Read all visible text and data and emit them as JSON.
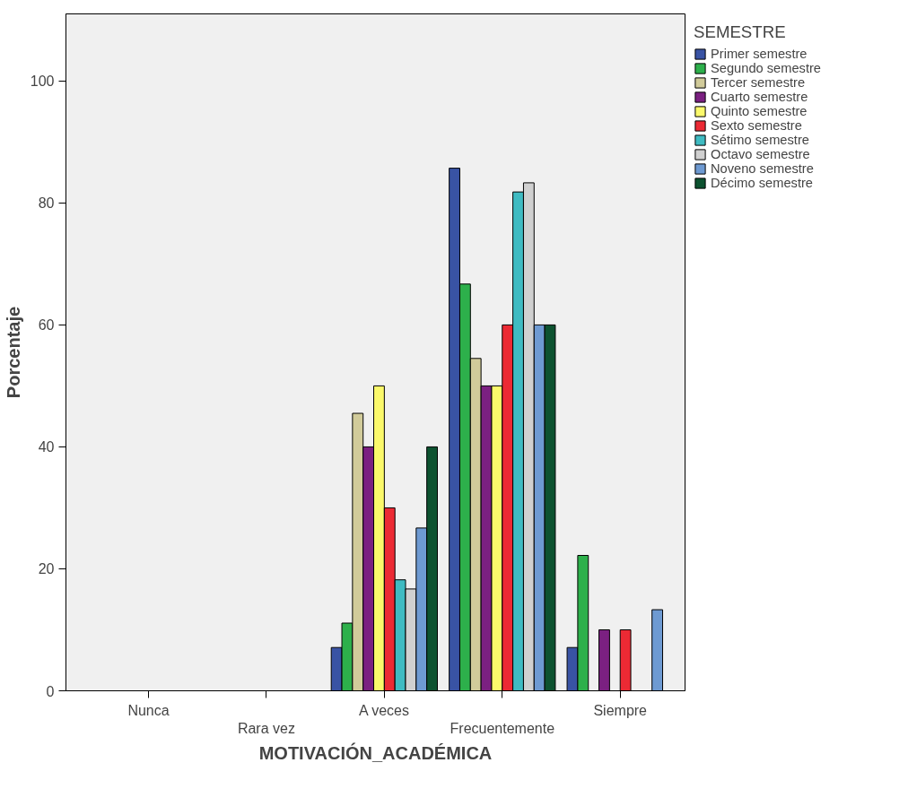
{
  "chart_data": {
    "type": "bar",
    "xlabel": "MOTIVACIÓN_ACADÉMICA",
    "ylabel": "Porcentaje",
    "legend_title": "SEMESTRE",
    "legend": "right",
    "grid": false,
    "categories": [
      "Nunca",
      "Rara vez",
      "A veces",
      "Frecuentemente",
      "Siempre"
    ],
    "ylim": [
      0,
      111
    ],
    "yticks": [
      0,
      20,
      40,
      60,
      80,
      100
    ],
    "series": [
      {
        "name": "Primer semestre",
        "color": "#3953a4",
        "values": [
          null,
          null,
          7.1,
          85.7,
          7.1
        ]
      },
      {
        "name": "Segundo semestre",
        "color": "#2db04b",
        "values": [
          null,
          null,
          11.1,
          66.7,
          22.2
        ]
      },
      {
        "name": "Tercer semestre",
        "color": "#d1cb9a",
        "values": [
          null,
          null,
          45.5,
          54.5,
          null
        ]
      },
      {
        "name": "Cuarto semestre",
        "color": "#7b2081",
        "values": [
          null,
          null,
          40,
          50,
          10
        ]
      },
      {
        "name": "Quinto semestre",
        "color": "#fbf96b",
        "values": [
          null,
          null,
          50,
          50,
          null
        ]
      },
      {
        "name": "Sexto semestre",
        "color": "#ec2a34",
        "values": [
          null,
          null,
          30,
          60,
          10
        ]
      },
      {
        "name": "Sétimo semestre",
        "color": "#3fbbc2",
        "values": [
          null,
          null,
          18.2,
          81.8,
          null
        ]
      },
      {
        "name": "Octavo semestre",
        "color": "#d0d0d0",
        "values": [
          null,
          null,
          16.7,
          83.3,
          null
        ]
      },
      {
        "name": "Noveno semestre",
        "color": "#6e9ad2",
        "values": [
          null,
          null,
          26.7,
          60,
          13.3
        ]
      },
      {
        "name": "Décimo semestre",
        "color": "#0d5230",
        "values": [
          null,
          null,
          40,
          60,
          null
        ]
      }
    ]
  }
}
